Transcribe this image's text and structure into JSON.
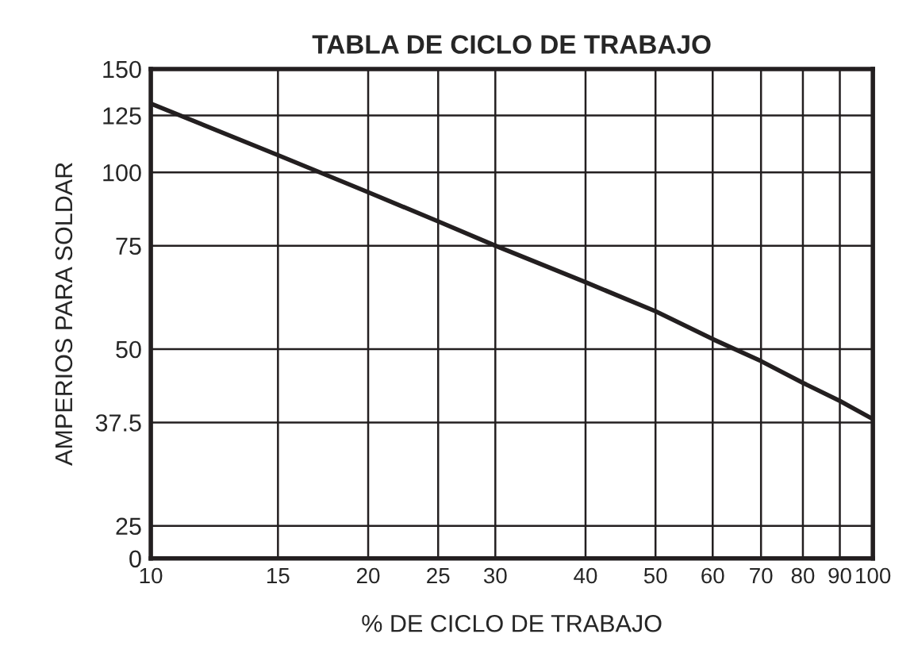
{
  "chart_data": {
    "type": "line",
    "title": "TABLA DE CICLO DE TRABAJO",
    "xlabel": "% DE CICLO DE TRABAJO",
    "ylabel": "AMPERIOS PARA SOLDAR",
    "log": "xy",
    "xlim": [
      10,
      100
    ],
    "xticks": [
      10,
      15,
      20,
      25,
      30,
      40,
      50,
      60,
      70,
      80,
      90,
      100
    ],
    "ylim": [
      0,
      150
    ],
    "yticks": [
      0,
      25,
      37.5,
      50,
      75,
      100,
      125,
      150
    ],
    "grid": true,
    "x": [
      10,
      15,
      20,
      25,
      30,
      40,
      50,
      60,
      70,
      80,
      90,
      100
    ],
    "series": [
      {
        "color": "#231f20",
        "values": [
          131,
          107,
          92.5,
          82.5,
          75,
          65,
          58,
          52,
          47.7,
          43.8,
          40.8,
          38
        ]
      }
    ]
  }
}
